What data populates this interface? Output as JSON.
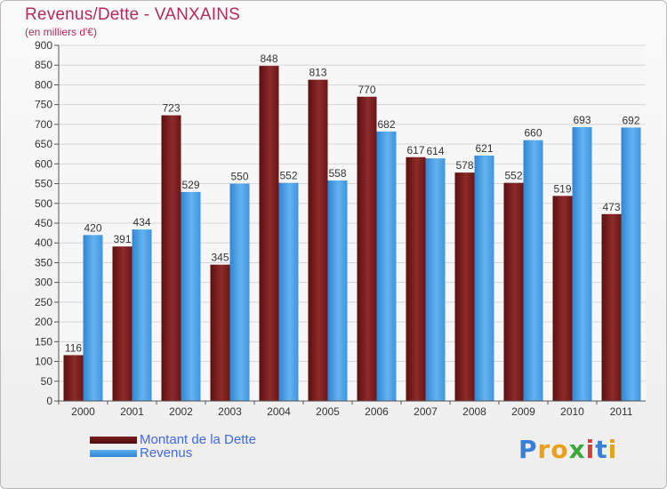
{
  "header": {
    "title": "Revenus/Dette - VANXAINS",
    "subtitle": "(en milliers d'€)"
  },
  "chart_data": {
    "type": "bar",
    "categories": [
      "2000",
      "2001",
      "2002",
      "2003",
      "2004",
      "2005",
      "2006",
      "2007",
      "2008",
      "2009",
      "2010",
      "2011"
    ],
    "series": [
      {
        "name": "Montant de la Dette",
        "color": "#7a1e1e",
        "values": [
          116,
          391,
          723,
          345,
          848,
          813,
          770,
          617,
          578,
          552,
          519,
          473
        ]
      },
      {
        "name": "Revenus",
        "color": "#4a9ee0",
        "values": [
          420,
          434,
          529,
          550,
          552,
          558,
          682,
          614,
          621,
          660,
          693,
          692
        ]
      }
    ],
    "ylim": [
      0,
      900
    ],
    "yticks": [
      0,
      50,
      100,
      150,
      200,
      250,
      300,
      350,
      400,
      450,
      500,
      550,
      600,
      650,
      700,
      750,
      800,
      850,
      900
    ],
    "grid": true,
    "legend_position": "bottom-left"
  },
  "legend": {
    "items": [
      {
        "label": "Montant de la Dette",
        "color": "#7a1e1e"
      },
      {
        "label": "Revenus",
        "color": "#4a9ee0"
      }
    ]
  },
  "logo": {
    "letters": [
      "P",
      "r",
      "o",
      "x",
      "i",
      "t",
      "i"
    ],
    "colors": [
      "#3a7fd6",
      "#e8a11c",
      "#e8a11c",
      "#3aa83a",
      "#d93b3b",
      "#3a7fd6",
      "#e8a11c"
    ]
  }
}
